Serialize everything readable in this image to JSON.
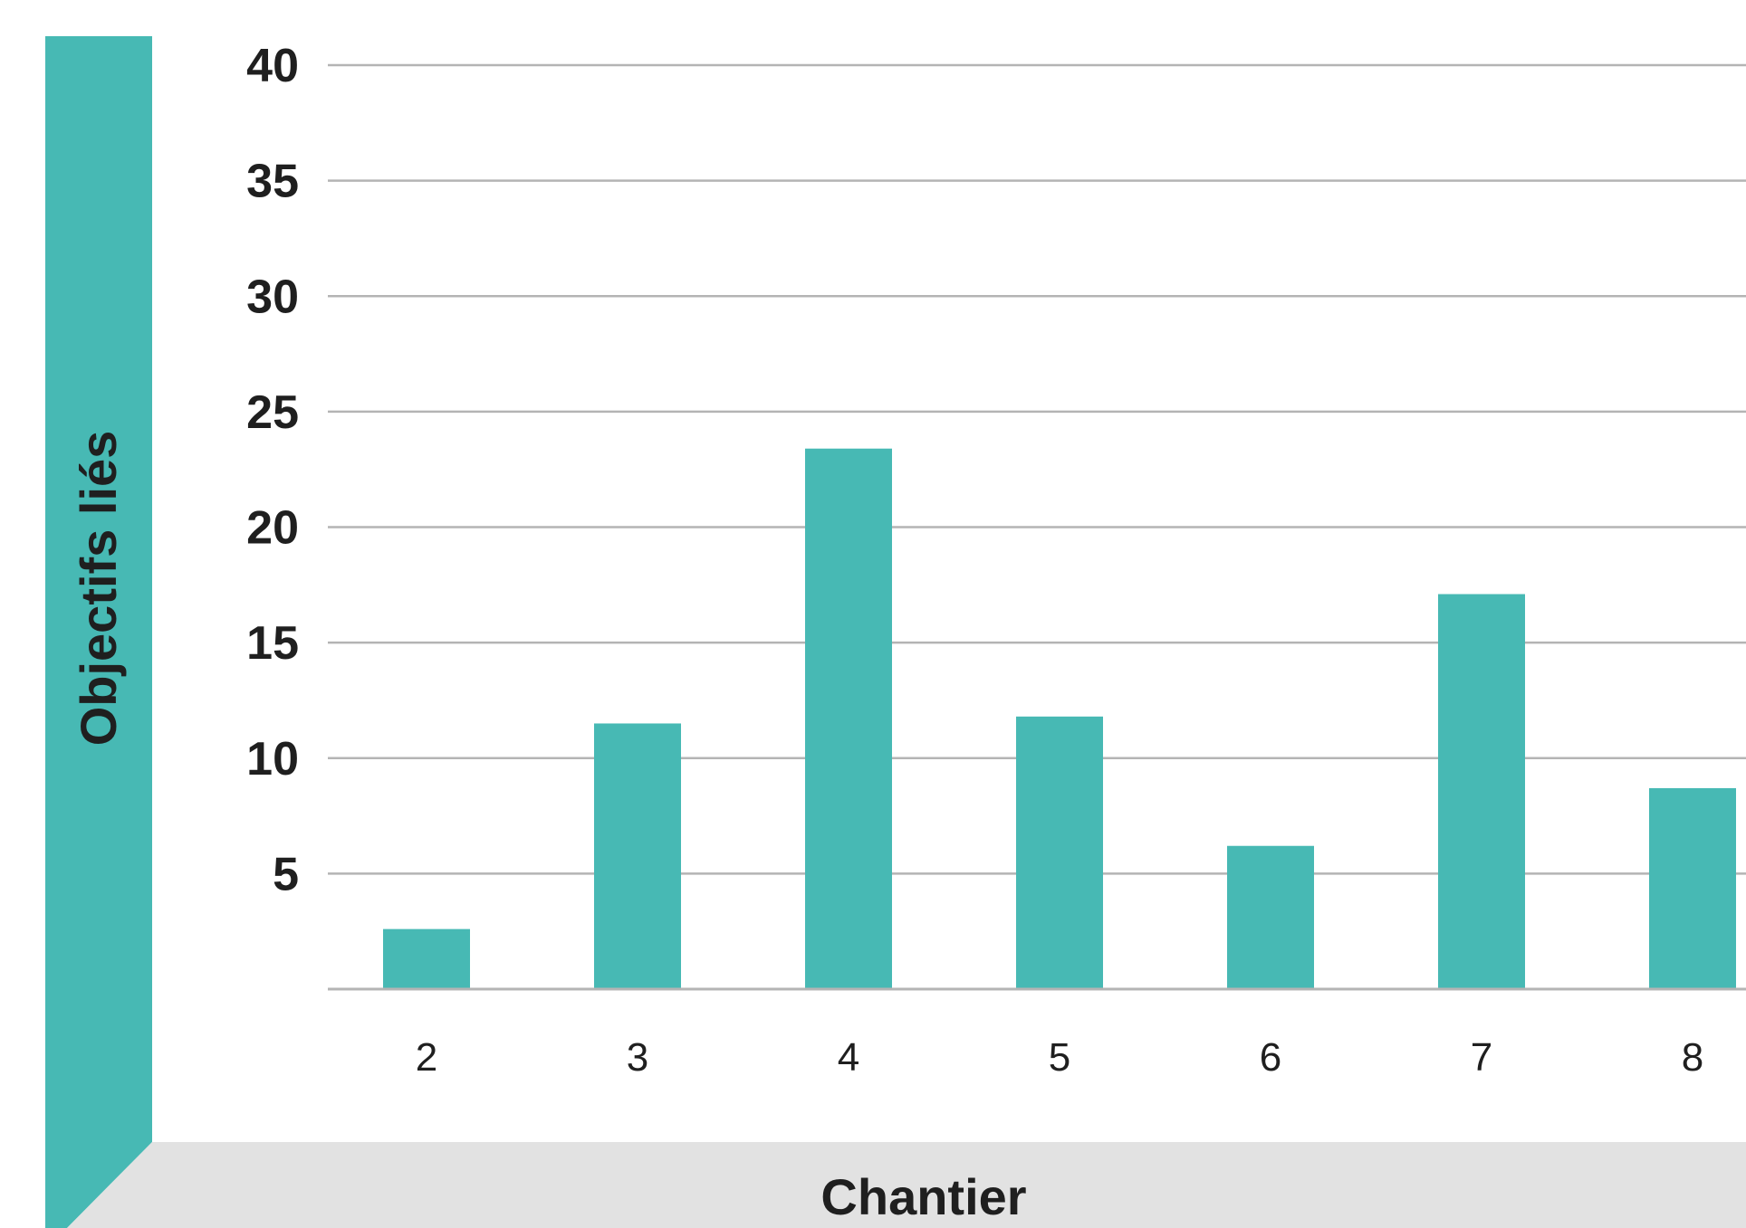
{
  "chart_data": {
    "type": "bar",
    "title": "",
    "xlabel": "Chantier",
    "ylabel": "Objectifs liés",
    "categories": [
      "2",
      "3",
      "4",
      "5",
      "6",
      "7",
      "8"
    ],
    "values": [
      2.6,
      11.5,
      23.4,
      11.8,
      6.2,
      17.1,
      8.7
    ],
    "ylim": [
      0,
      40
    ],
    "yticks": [
      5,
      10,
      15,
      20,
      25,
      30,
      35,
      40
    ],
    "grid": true,
    "colors": {
      "bar": "#47b9b4",
      "ylabel_band": "#47b9b4",
      "xlabel_band": "#e2e2e2",
      "grid": "#b4b4b4"
    }
  }
}
